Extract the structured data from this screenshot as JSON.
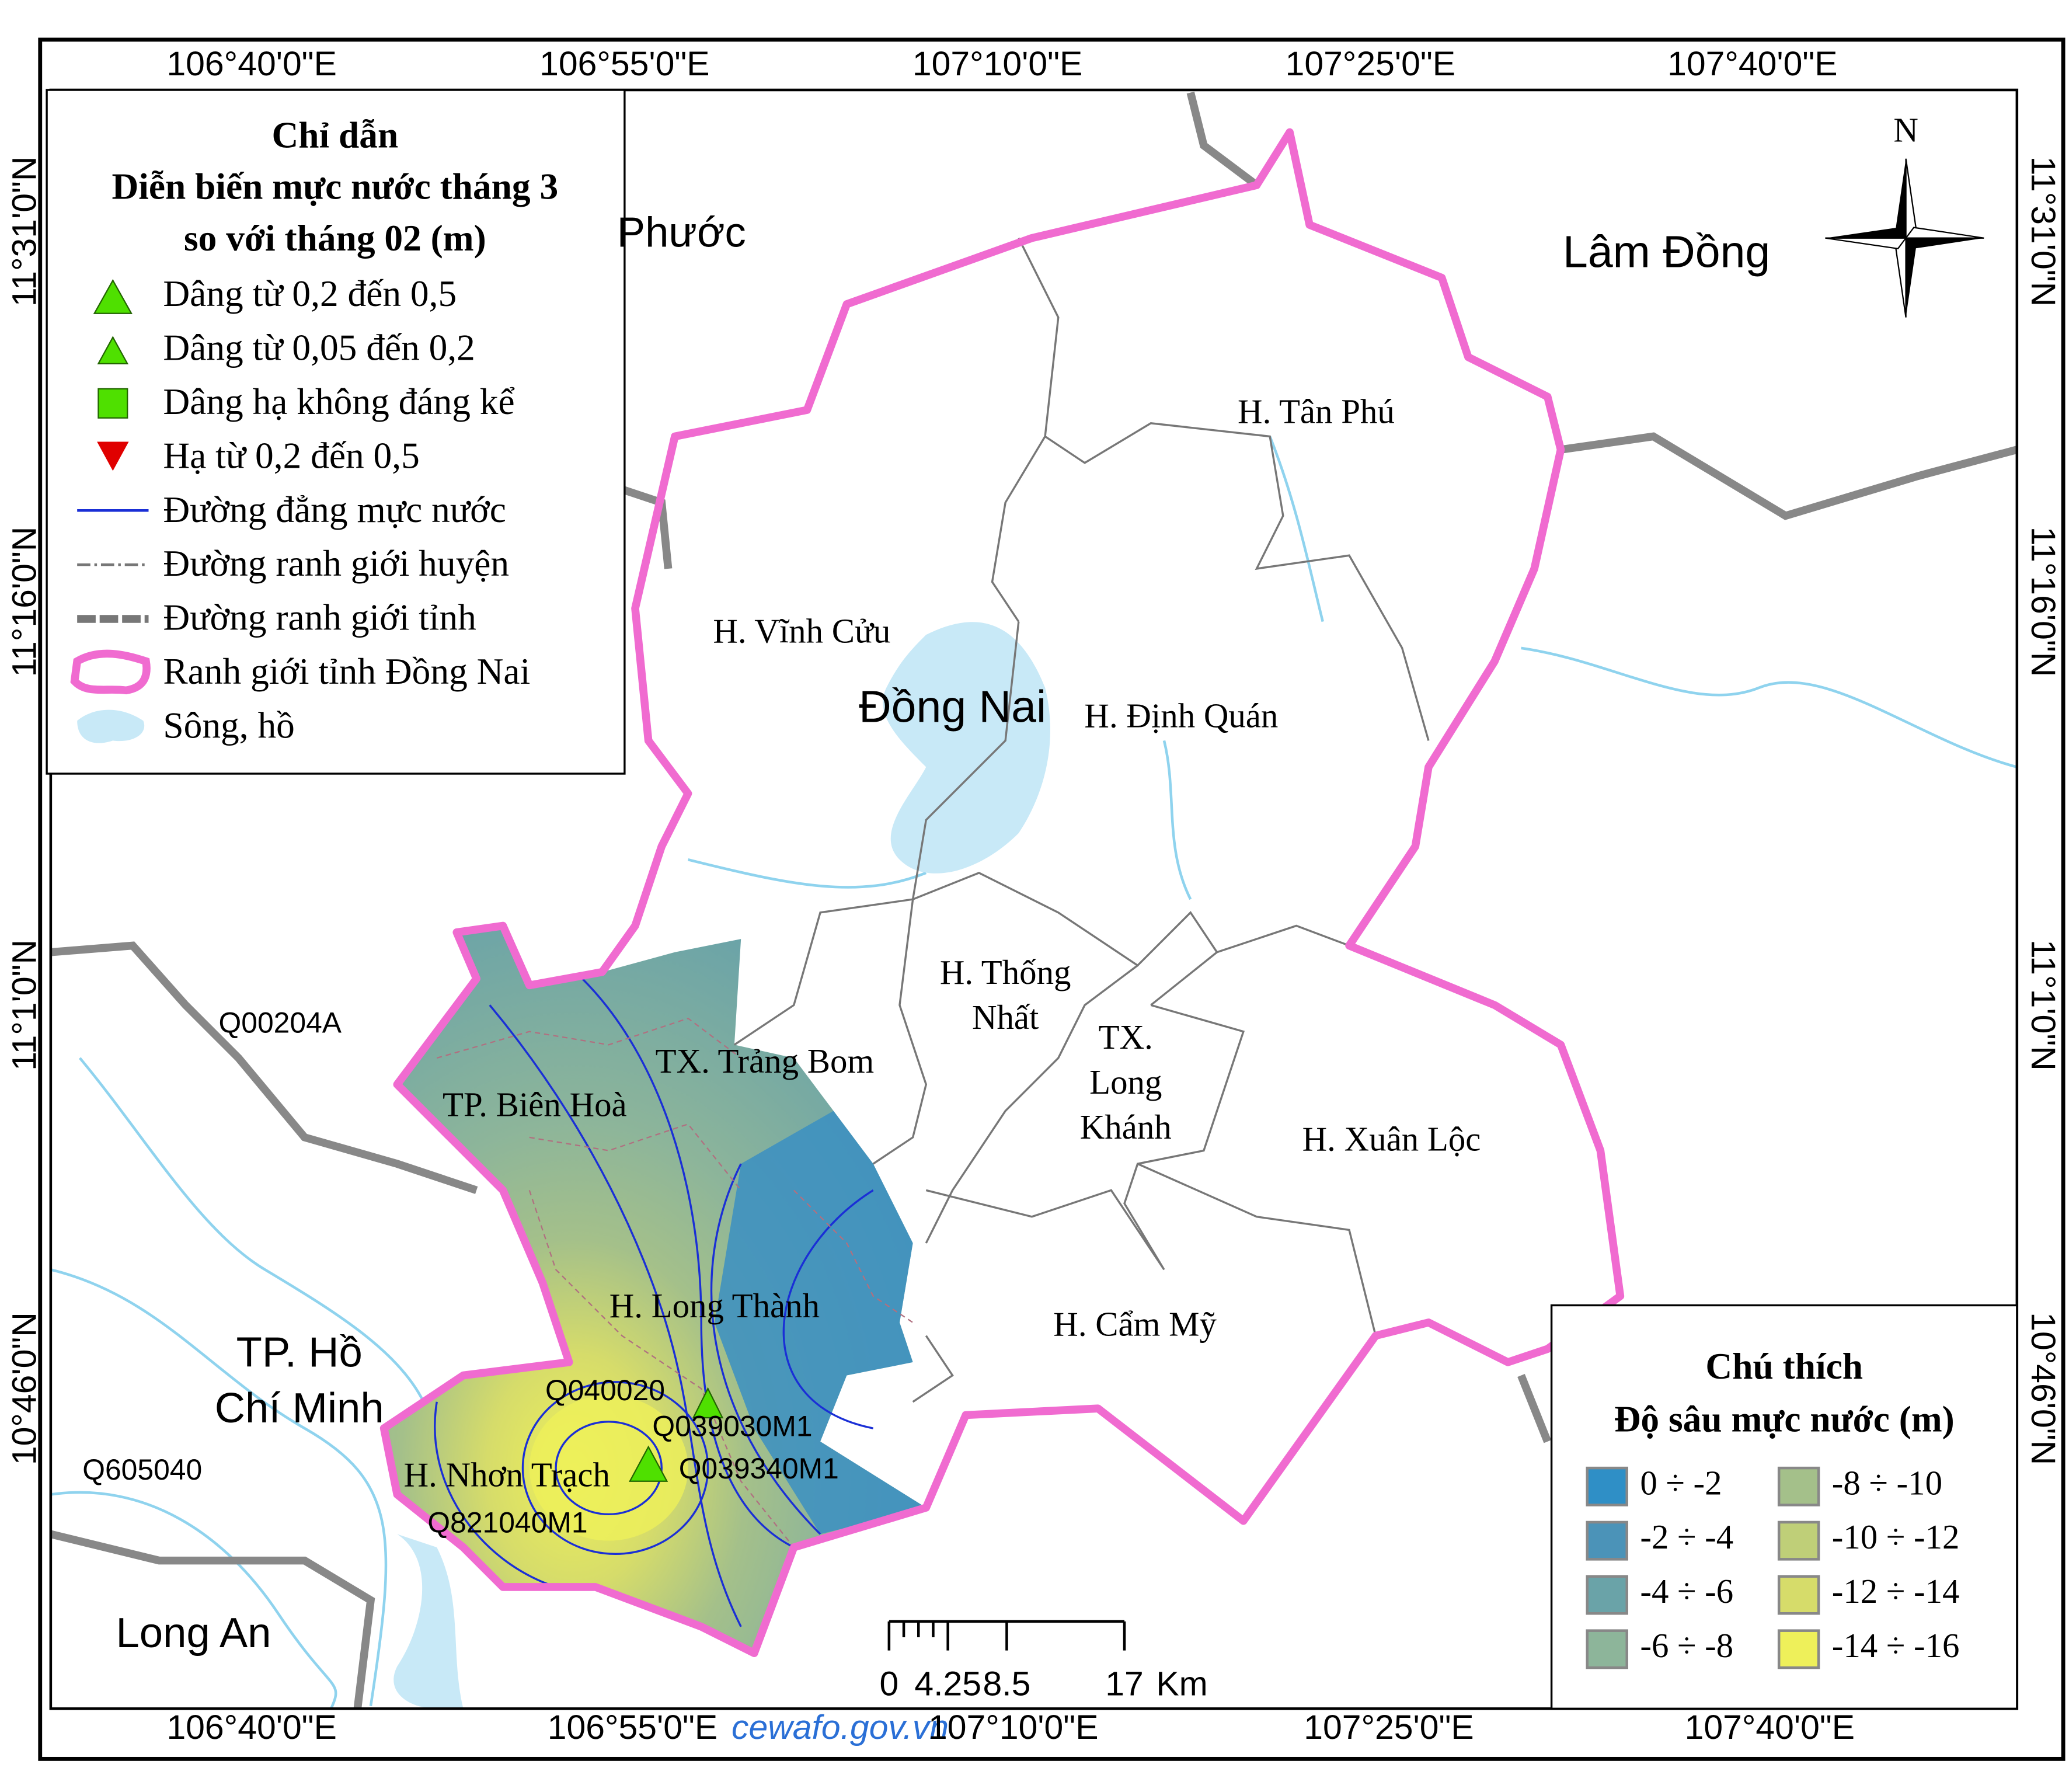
{
  "coordinates": {
    "top": [
      "106°40'0\"E",
      "106°55'0\"E",
      "107°10'0\"E",
      "107°25'0\"E",
      "107°40'0\"E"
    ],
    "bottom": [
      "106°40'0\"E",
      "106°55'0\"E",
      "107°10'0\"E",
      "107°25'0\"E",
      "107°40'0\"E"
    ],
    "left": [
      "11°31'0\"N",
      "11°16'0\"N",
      "11°1'0\"N",
      "10°46'0\"N"
    ],
    "right": [
      "11°31'0\"N",
      "11°16'0\"N",
      "11°1'0\"N",
      "10°46'0\"N"
    ]
  },
  "legend": {
    "title": "Chỉ dẫn",
    "subtitle": [
      "Diễn biến mực nước tháng 3",
      "so với tháng 02 (m)"
    ],
    "items": [
      "Dâng từ 0,2 đến 0,5",
      "Dâng từ 0,05 đến 0,2",
      "Dâng hạ không đáng kể",
      "Hạ từ 0,2 đến 0,5",
      "Đường đẳng mực nước",
      "Đường ranh giới huyện",
      "Đường ranh giới tỉnh",
      "Ranh giới tỉnh Đồng Nai",
      "Sông, hồ"
    ]
  },
  "depth_legend": {
    "title": "Chú thích",
    "subtitle": "Độ sâu mực nước (m)",
    "classes": [
      {
        "label": "0 ÷ -2",
        "color": "#2f8fc6"
      },
      {
        "label": "-2 ÷ -4",
        "color": "#4b93b8"
      },
      {
        "label": "-4 ÷ -6",
        "color": "#6aa3a8"
      },
      {
        "label": "-6 ÷ -8",
        "color": "#8db59a"
      },
      {
        "label": "-8 ÷ -10",
        "color": "#a4c08a"
      },
      {
        "label": "-10 ÷ -12",
        "color": "#bfcf78"
      },
      {
        "label": "-12 ÷ -14",
        "color": "#d6dc6a"
      },
      {
        "label": "-14 ÷ -16",
        "color": "#eef05a"
      }
    ]
  },
  "places": [
    {
      "lines": [
        "Phước"
      ]
    },
    {
      "lines": [
        "Lâm Đồng"
      ]
    },
    {
      "lines": [
        "Đồng Nai"
      ]
    },
    {
      "lines": [
        "TP. Hồ",
        "Chí Minh"
      ]
    },
    {
      "lines": [
        "Long An"
      ]
    },
    {
      "lines": [
        "H. Tân Phú"
      ]
    },
    {
      "lines": [
        "H. Vĩnh Cửu"
      ]
    },
    {
      "lines": [
        "H. Định Quán"
      ]
    },
    {
      "lines": [
        "H. Thống",
        "Nhất"
      ]
    },
    {
      "lines": [
        "TX.",
        "Long",
        "Khánh"
      ]
    },
    {
      "lines": [
        "TX. Trảng Bom"
      ]
    },
    {
      "lines": [
        "TP. Biên Hoà"
      ]
    },
    {
      "lines": [
        "H. Xuân Lộc"
      ]
    },
    {
      "lines": [
        "H. Long Thành"
      ]
    },
    {
      "lines": [
        "H. Cẩm Mỹ"
      ]
    },
    {
      "lines": [
        "H. Nhơn Trạch"
      ]
    }
  ],
  "stations": [
    "Q00204A",
    "Q040020",
    "Q039030M1",
    "Q039340M1",
    "Q605040",
    "Q821040M1"
  ],
  "scale_bar": {
    "ticks": [
      0,
      4.25,
      8.5,
      17
    ],
    "unit": "Km"
  },
  "north": "N",
  "source": "cewafo.gov.vn"
}
